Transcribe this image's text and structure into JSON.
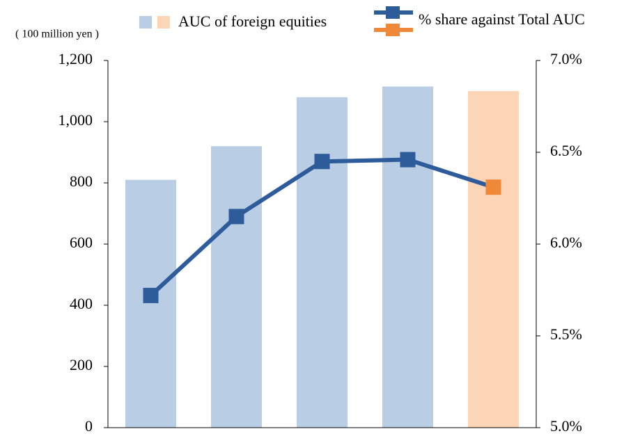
{
  "chart_data": {
    "type": "bar",
    "unit_label": "( 100 million yen )",
    "categories": [
      null,
      null,
      null,
      null,
      null
    ],
    "series": [
      {
        "name": "AUC of foreign equities",
        "type": "bar",
        "color": "#b9cde5",
        "colors": [
          "#b9cde5",
          "#b9cde5",
          "#b9cde5",
          "#b9cde5",
          "#fbd5b5"
        ],
        "values": [
          810,
          920,
          1080,
          1115,
          1100
        ]
      },
      {
        "name": "% share against Total AUC",
        "type": "line",
        "axis": "y2",
        "color": "#2e5c9a",
        "marker_colors": [
          "#2e5c9a",
          "#2e5c9a",
          "#2e5c9a",
          "#2e5c9a",
          "#f0883a"
        ],
        "values": [
          5.72,
          6.15,
          6.45,
          6.46,
          6.31
        ]
      }
    ],
    "ylim": [
      0,
      1200
    ],
    "yticks": [
      0,
      200,
      400,
      600,
      800,
      {
        "value": 1000,
        "label": "1,000"
      },
      {
        "value": 1200,
        "label": "1,200"
      }
    ],
    "y2lim": [
      5.0,
      7.0
    ],
    "y2ticks": [
      {
        "value": 5.0,
        "label": "5.0%"
      },
      {
        "value": 5.5,
        "label": "5.5%"
      },
      {
        "value": 6.0,
        "label": "6.0%"
      },
      {
        "value": 6.5,
        "label": "6.5%"
      },
      {
        "value": 7.0,
        "label": "7.0%"
      }
    ],
    "legend": "top"
  }
}
